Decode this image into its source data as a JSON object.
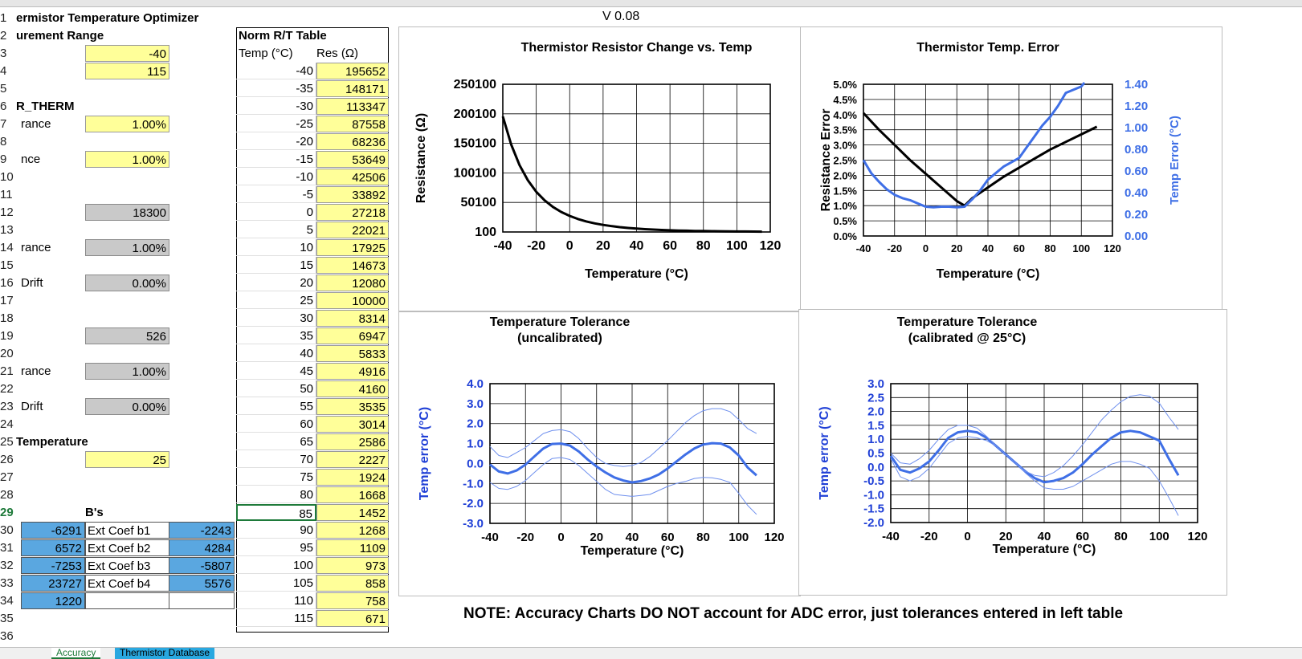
{
  "version": "V 0.08",
  "title": "ermistor Temperature Optimizer",
  "rows": [
    "1",
    "2",
    "3",
    "4",
    "5",
    "6",
    "7",
    "8",
    "9",
    "10",
    "11",
    "12",
    "13",
    "14",
    "15",
    "16",
    "17",
    "18",
    "19",
    "20",
    "21",
    "22",
    "23",
    "24",
    "25",
    "26",
    "27",
    "28",
    "29",
    "30",
    "31",
    "32",
    "33",
    "34",
    "35",
    "36"
  ],
  "left": {
    "range_label": "urement Range",
    "range_min": "-40",
    "range_max": "115",
    "r_therm_label": "R_THERM",
    "tol1_label": "rance",
    "tol1_value": "1.00%",
    "tol2_label": "nce",
    "tol2_value": "1.00%",
    "r_value": "18300",
    "tol3_label": "rance",
    "tol3_value": "1.00%",
    "drift1_label": "Drift",
    "drift1_value": "0.00%",
    "v526": "526",
    "tol4_label": "rance",
    "tol4_value": "1.00%",
    "drift2_label": "Drift",
    "drift2_value": "0.00%",
    "temp_label": "Temperature",
    "temp_value": "25",
    "bs_header": "B's",
    "b_rows": [
      {
        "a": "-6291",
        "label": "Ext Coef b1",
        "c": "-2243"
      },
      {
        "a": "6572",
        "label": "Ext Coef b2",
        "c": "4284"
      },
      {
        "a": "-7253",
        "label": "Ext Coef b3",
        "c": "-5807"
      },
      {
        "a": "23727",
        "label": "Ext Coef b4",
        "c": "5576"
      },
      {
        "a": "1220",
        "label": "",
        "c": ""
      }
    ]
  },
  "rt_table": {
    "title": "Norm R/T Table",
    "col_temp": "Temp (°C)",
    "col_res": "Res (Ω)",
    "rows": [
      [
        "-40",
        "195652"
      ],
      [
        "-35",
        "148171"
      ],
      [
        "-30",
        "113347"
      ],
      [
        "-25",
        "87558"
      ],
      [
        "-20",
        "68236"
      ],
      [
        "-15",
        "53649"
      ],
      [
        "-10",
        "42506"
      ],
      [
        "-5",
        "33892"
      ],
      [
        "0",
        "27218"
      ],
      [
        "5",
        "22021"
      ],
      [
        "10",
        "17925"
      ],
      [
        "15",
        "14673"
      ],
      [
        "20",
        "12080"
      ],
      [
        "25",
        "10000"
      ],
      [
        "30",
        "8314"
      ],
      [
        "35",
        "6947"
      ],
      [
        "40",
        "5833"
      ],
      [
        "45",
        "4916"
      ],
      [
        "50",
        "4160"
      ],
      [
        "55",
        "3535"
      ],
      [
        "60",
        "3014"
      ],
      [
        "65",
        "2586"
      ],
      [
        "70",
        "2227"
      ],
      [
        "75",
        "1924"
      ],
      [
        "80",
        "1668"
      ],
      [
        "85",
        "1452"
      ],
      [
        "90",
        "1268"
      ],
      [
        "95",
        "1109"
      ],
      [
        "100",
        "973"
      ],
      [
        "105",
        "858"
      ],
      [
        "110",
        "758"
      ],
      [
        "115",
        "671"
      ]
    ]
  },
  "note": "NOTE: Accuracy Charts DO NOT account for ADC error, just tolerances entered in left table",
  "tabs": [
    "Accuracy",
    "Thermistor Database"
  ],
  "chart_data": [
    {
      "type": "line",
      "title": "Thermistor Resistor Change vs. Temp",
      "xlabel": "Temperature (°C)",
      "ylabel": "Resistance (Ω)",
      "xlim": [
        -40,
        120
      ],
      "ylim": [
        100,
        250100
      ],
      "xticks": [
        "-40",
        "-20",
        "0",
        "20",
        "40",
        "60",
        "80",
        "100",
        "120"
      ],
      "yticks": [
        "100",
        "50100",
        "100100",
        "150100",
        "200100",
        "250100"
      ],
      "grid": true,
      "series": [
        {
          "color": "#000000",
          "x": [
            -40,
            -35,
            -30,
            -25,
            -20,
            -15,
            -10,
            -5,
            0,
            5,
            10,
            15,
            20,
            25,
            30,
            35,
            40,
            45,
            50,
            55,
            60,
            65,
            70,
            75,
            80,
            85,
            90,
            95,
            100,
            105,
            110,
            115
          ],
          "y": [
            195652,
            148171,
            113347,
            87558,
            68236,
            53649,
            42506,
            33892,
            27218,
            22021,
            17925,
            14673,
            12080,
            10000,
            8314,
            6947,
            5833,
            4916,
            4160,
            3535,
            3014,
            2586,
            2227,
            1924,
            1668,
            1452,
            1268,
            1109,
            973,
            858,
            758,
            671
          ]
        }
      ]
    },
    {
      "type": "line",
      "title": "Thermistor Temp. Error",
      "xlabel": "Temperature (°C)",
      "ylabel": "Resistance Error",
      "y2label": "Temp Error (°C)",
      "xlim": [
        -40,
        120
      ],
      "ylim": [
        0,
        5
      ],
      "y2lim": [
        0,
        1.4
      ],
      "xticks": [
        "-40",
        "-20",
        "0",
        "20",
        "40",
        "60",
        "80",
        "100",
        "120"
      ],
      "yticks": [
        "0.0%",
        "0.5%",
        "1.0%",
        "1.5%",
        "2.0%",
        "2.5%",
        "3.0%",
        "3.5%",
        "4.0%",
        "4.5%",
        "5.0%"
      ],
      "y2ticks": [
        "0.00",
        "0.20",
        "0.40",
        "0.60",
        "0.80",
        "1.00",
        "1.20",
        "1.40"
      ],
      "grid": true,
      "series": [
        {
          "color": "#000000",
          "axis": "y",
          "x": [
            -40,
            -30,
            -20,
            -10,
            0,
            10,
            20,
            25,
            30,
            40,
            50,
            60,
            70,
            80,
            90,
            100,
            110
          ],
          "y": [
            4.05,
            3.5,
            3.0,
            2.5,
            2.05,
            1.6,
            1.15,
            1.0,
            1.25,
            1.6,
            1.95,
            2.25,
            2.55,
            2.85,
            3.1,
            3.35,
            3.6
          ]
        },
        {
          "color": "#3f6fe6",
          "axis": "y2",
          "x": [
            -40,
            -35,
            -30,
            -25,
            -20,
            -15,
            -10,
            -5,
            0,
            5,
            10,
            15,
            20,
            25,
            30,
            35,
            40,
            45,
            50,
            55,
            60,
            65,
            70,
            75,
            80,
            85,
            90,
            95,
            100,
            102
          ],
          "y2": [
            0.7,
            0.58,
            0.5,
            0.43,
            0.38,
            0.35,
            0.33,
            0.3,
            0.27,
            0.265,
            0.27,
            0.27,
            0.265,
            0.27,
            0.34,
            0.42,
            0.52,
            0.58,
            0.64,
            0.68,
            0.72,
            0.82,
            0.92,
            1.02,
            1.1,
            1.2,
            1.32,
            1.35,
            1.38,
            1.42
          ]
        }
      ]
    },
    {
      "type": "line",
      "title": "Temperature Tolerance",
      "subtitle": "(uncalibrated)",
      "xlabel": "Temperature (°C)",
      "ylabel": "Temp error (°C)",
      "xlim": [
        -40,
        120
      ],
      "ylim": [
        -3,
        4
      ],
      "xticks": [
        "-40",
        "-20",
        "0",
        "20",
        "40",
        "60",
        "80",
        "100",
        "120"
      ],
      "yticks": [
        "-3.0",
        "-2.0",
        "-1.0",
        "0.0",
        "1.0",
        "2.0",
        "3.0",
        "4.0"
      ],
      "grid": true,
      "series": [
        {
          "color": "#3f6fe6",
          "width": 3,
          "x": [
            -40,
            -35,
            -30,
            -25,
            -20,
            -15,
            -10,
            -5,
            0,
            5,
            10,
            15,
            20,
            25,
            30,
            35,
            40,
            45,
            50,
            55,
            60,
            65,
            70,
            75,
            80,
            85,
            90,
            95,
            100,
            105,
            110
          ],
          "y": [
            -0.05,
            -0.4,
            -0.5,
            -0.35,
            -0.05,
            0.35,
            0.75,
            0.98,
            1.0,
            0.9,
            0.6,
            0.2,
            -0.15,
            -0.45,
            -0.7,
            -0.85,
            -0.95,
            -0.88,
            -0.75,
            -0.55,
            -0.25,
            0.1,
            0.45,
            0.75,
            0.95,
            1.02,
            1.0,
            0.8,
            0.4,
            -0.2,
            -0.6
          ]
        },
        {
          "color": "#6f90ee",
          "width": 1,
          "x": [
            -40,
            -35,
            -30,
            -25,
            -20,
            -15,
            -10,
            -5,
            0,
            5,
            10,
            15,
            20,
            25,
            30,
            35,
            40,
            45,
            50,
            55,
            60,
            65,
            70,
            75,
            80,
            85,
            90,
            95,
            100,
            105,
            110
          ],
          "y": [
            0.85,
            0.4,
            0.3,
            0.55,
            0.8,
            1.15,
            1.5,
            1.65,
            1.7,
            1.6,
            1.25,
            0.75,
            0.3,
            0.0,
            -0.1,
            -0.15,
            -0.1,
            0.05,
            0.35,
            0.75,
            1.15,
            1.6,
            2.05,
            2.4,
            2.65,
            2.75,
            2.75,
            2.6,
            2.2,
            1.75,
            1.5
          ]
        },
        {
          "color": "#6f90ee",
          "width": 1,
          "x": [
            -40,
            -35,
            -30,
            -25,
            -20,
            -15,
            -10,
            -5,
            0,
            5,
            10,
            15,
            20,
            25,
            30,
            35,
            40,
            45,
            50,
            55,
            60,
            65,
            70,
            75,
            80,
            85,
            90,
            95,
            100,
            105,
            110
          ],
          "y": [
            -0.95,
            -1.25,
            -1.3,
            -1.15,
            -0.85,
            -0.45,
            -0.05,
            0.25,
            0.3,
            0.2,
            -0.1,
            -0.5,
            -0.9,
            -1.3,
            -1.55,
            -1.6,
            -1.65,
            -1.6,
            -1.55,
            -1.35,
            -1.15,
            -1.0,
            -0.9,
            -0.75,
            -0.7,
            -0.72,
            -0.8,
            -0.95,
            -1.5,
            -2.1,
            -2.55
          ]
        }
      ]
    },
    {
      "type": "line",
      "title": "Temperature Tolerance",
      "subtitle": "(calibrated @ 25°C)",
      "xlabel": "Temperature (°C)",
      "ylabel": "Temp error (°C)",
      "xlim": [
        -40,
        120
      ],
      "ylim": [
        -2,
        3
      ],
      "xticks": [
        "-40",
        "-20",
        "0",
        "20",
        "40",
        "60",
        "80",
        "100",
        "120"
      ],
      "yticks": [
        "-2.0",
        "-1.5",
        "-1.0",
        "-0.5",
        "0.0",
        "0.5",
        "1.0",
        "1.5",
        "2.0",
        "2.5",
        "3.0"
      ],
      "grid": true,
      "series": [
        {
          "color": "#3f6fe6",
          "width": 3,
          "x": [
            -40,
            -35,
            -30,
            -25,
            -20,
            -15,
            -10,
            -5,
            0,
            5,
            10,
            15,
            20,
            25,
            30,
            35,
            40,
            45,
            50,
            55,
            60,
            65,
            70,
            75,
            80,
            85,
            90,
            95,
            100,
            105,
            110
          ],
          "y": [
            0.4,
            -0.1,
            -0.2,
            -0.05,
            0.2,
            0.6,
            1.05,
            1.25,
            1.3,
            1.25,
            1.05,
            0.75,
            0.45,
            0.15,
            -0.15,
            -0.4,
            -0.55,
            -0.5,
            -0.4,
            -0.2,
            0.1,
            0.45,
            0.75,
            1.05,
            1.25,
            1.3,
            1.25,
            1.1,
            0.95,
            0.3,
            -0.3
          ]
        },
        {
          "color": "#6f90ee",
          "width": 1,
          "x": [
            -40,
            -35,
            -30,
            -25,
            -20,
            -15,
            -10,
            -5,
            0,
            5,
            10,
            15,
            20,
            25,
            30,
            35,
            40,
            45,
            50,
            55,
            60,
            65,
            70,
            75,
            80,
            85,
            90,
            95,
            100,
            105,
            110
          ],
          "y": [
            0.5,
            0.15,
            0.1,
            0.3,
            0.6,
            1.0,
            1.35,
            1.5,
            1.5,
            1.4,
            1.1,
            0.75,
            0.45,
            0.15,
            -0.15,
            -0.3,
            -0.35,
            -0.2,
            0.05,
            0.4,
            0.8,
            1.25,
            1.7,
            2.05,
            2.35,
            2.55,
            2.6,
            2.55,
            2.3,
            1.8,
            1.35
          ]
        },
        {
          "color": "#6f90ee",
          "width": 1,
          "x": [
            -40,
            -35,
            -30,
            -25,
            -20,
            -15,
            -10,
            -5,
            0,
            5,
            10,
            15,
            20,
            25,
            30,
            35,
            40,
            45,
            50,
            55,
            60,
            65,
            70,
            75,
            80,
            85,
            90,
            95,
            100,
            105,
            110
          ],
          "y": [
            0.3,
            -0.35,
            -0.5,
            -0.35,
            -0.05,
            0.4,
            0.85,
            1.05,
            1.1,
            1.05,
            0.95,
            0.75,
            0.45,
            0.15,
            -0.2,
            -0.5,
            -0.75,
            -0.8,
            -0.8,
            -0.7,
            -0.5,
            -0.3,
            -0.1,
            0.1,
            0.2,
            0.2,
            0.1,
            -0.05,
            -0.5,
            -1.1,
            -1.75
          ]
        }
      ]
    }
  ]
}
